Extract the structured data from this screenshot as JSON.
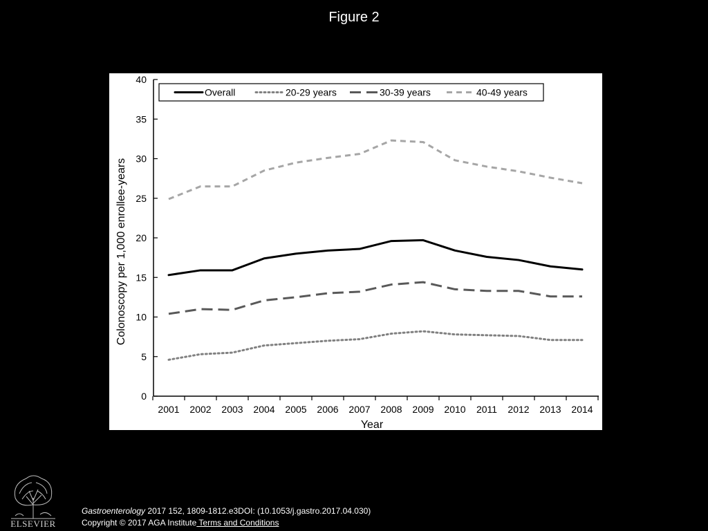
{
  "slide": {
    "title": "Figure 2"
  },
  "citation": {
    "journal": "Gastroenterology",
    "details": " 2017 152, 1809-1812.e3DOI: (10.1053/j.gastro.2017.04.030)",
    "copyright": "Copyright © 2017 AGA Institute",
    "terms_link": " Terms and Conditions"
  },
  "logo": {
    "wordmark": "ELSEVIER"
  },
  "chart_data": {
    "type": "line",
    "title": "",
    "xlabel": "Year",
    "ylabel": "Colonoscopy per 1,000 enrollee-years",
    "ylim": [
      0,
      40
    ],
    "yticks": [
      0,
      5,
      10,
      15,
      20,
      25,
      30,
      35,
      40
    ],
    "x": [
      "2001",
      "2002",
      "2003",
      "2004",
      "2005",
      "2006",
      "2007",
      "2008",
      "2009",
      "2010",
      "2011",
      "2012",
      "2013",
      "2014"
    ],
    "legend_position": "top",
    "grid": false,
    "series": [
      {
        "name": "Overall",
        "style": "solid",
        "color": "#000000",
        "values": [
          15.3,
          15.9,
          15.9,
          17.4,
          18.0,
          18.4,
          18.6,
          19.6,
          19.7,
          18.4,
          17.6,
          17.2,
          16.4,
          16.0
        ]
      },
      {
        "name": "20-29 years",
        "style": "dotted",
        "color": "#808080",
        "values": [
          4.6,
          5.3,
          5.5,
          6.4,
          6.7,
          7.0,
          7.2,
          7.9,
          8.2,
          7.8,
          7.7,
          7.6,
          7.1,
          7.1
        ]
      },
      {
        "name": "30-39 years",
        "style": "dashed",
        "color": "#595959",
        "values": [
          10.4,
          11.0,
          10.9,
          12.1,
          12.5,
          13.0,
          13.2,
          14.1,
          14.4,
          13.5,
          13.3,
          13.3,
          12.6,
          12.6
        ]
      },
      {
        "name": "40-49 years",
        "style": "dashed",
        "color": "#a6a6a6",
        "values": [
          24.9,
          26.5,
          26.5,
          28.5,
          29.5,
          30.1,
          30.6,
          32.3,
          32.1,
          29.8,
          29.0,
          28.4,
          27.6,
          26.9
        ]
      }
    ]
  }
}
